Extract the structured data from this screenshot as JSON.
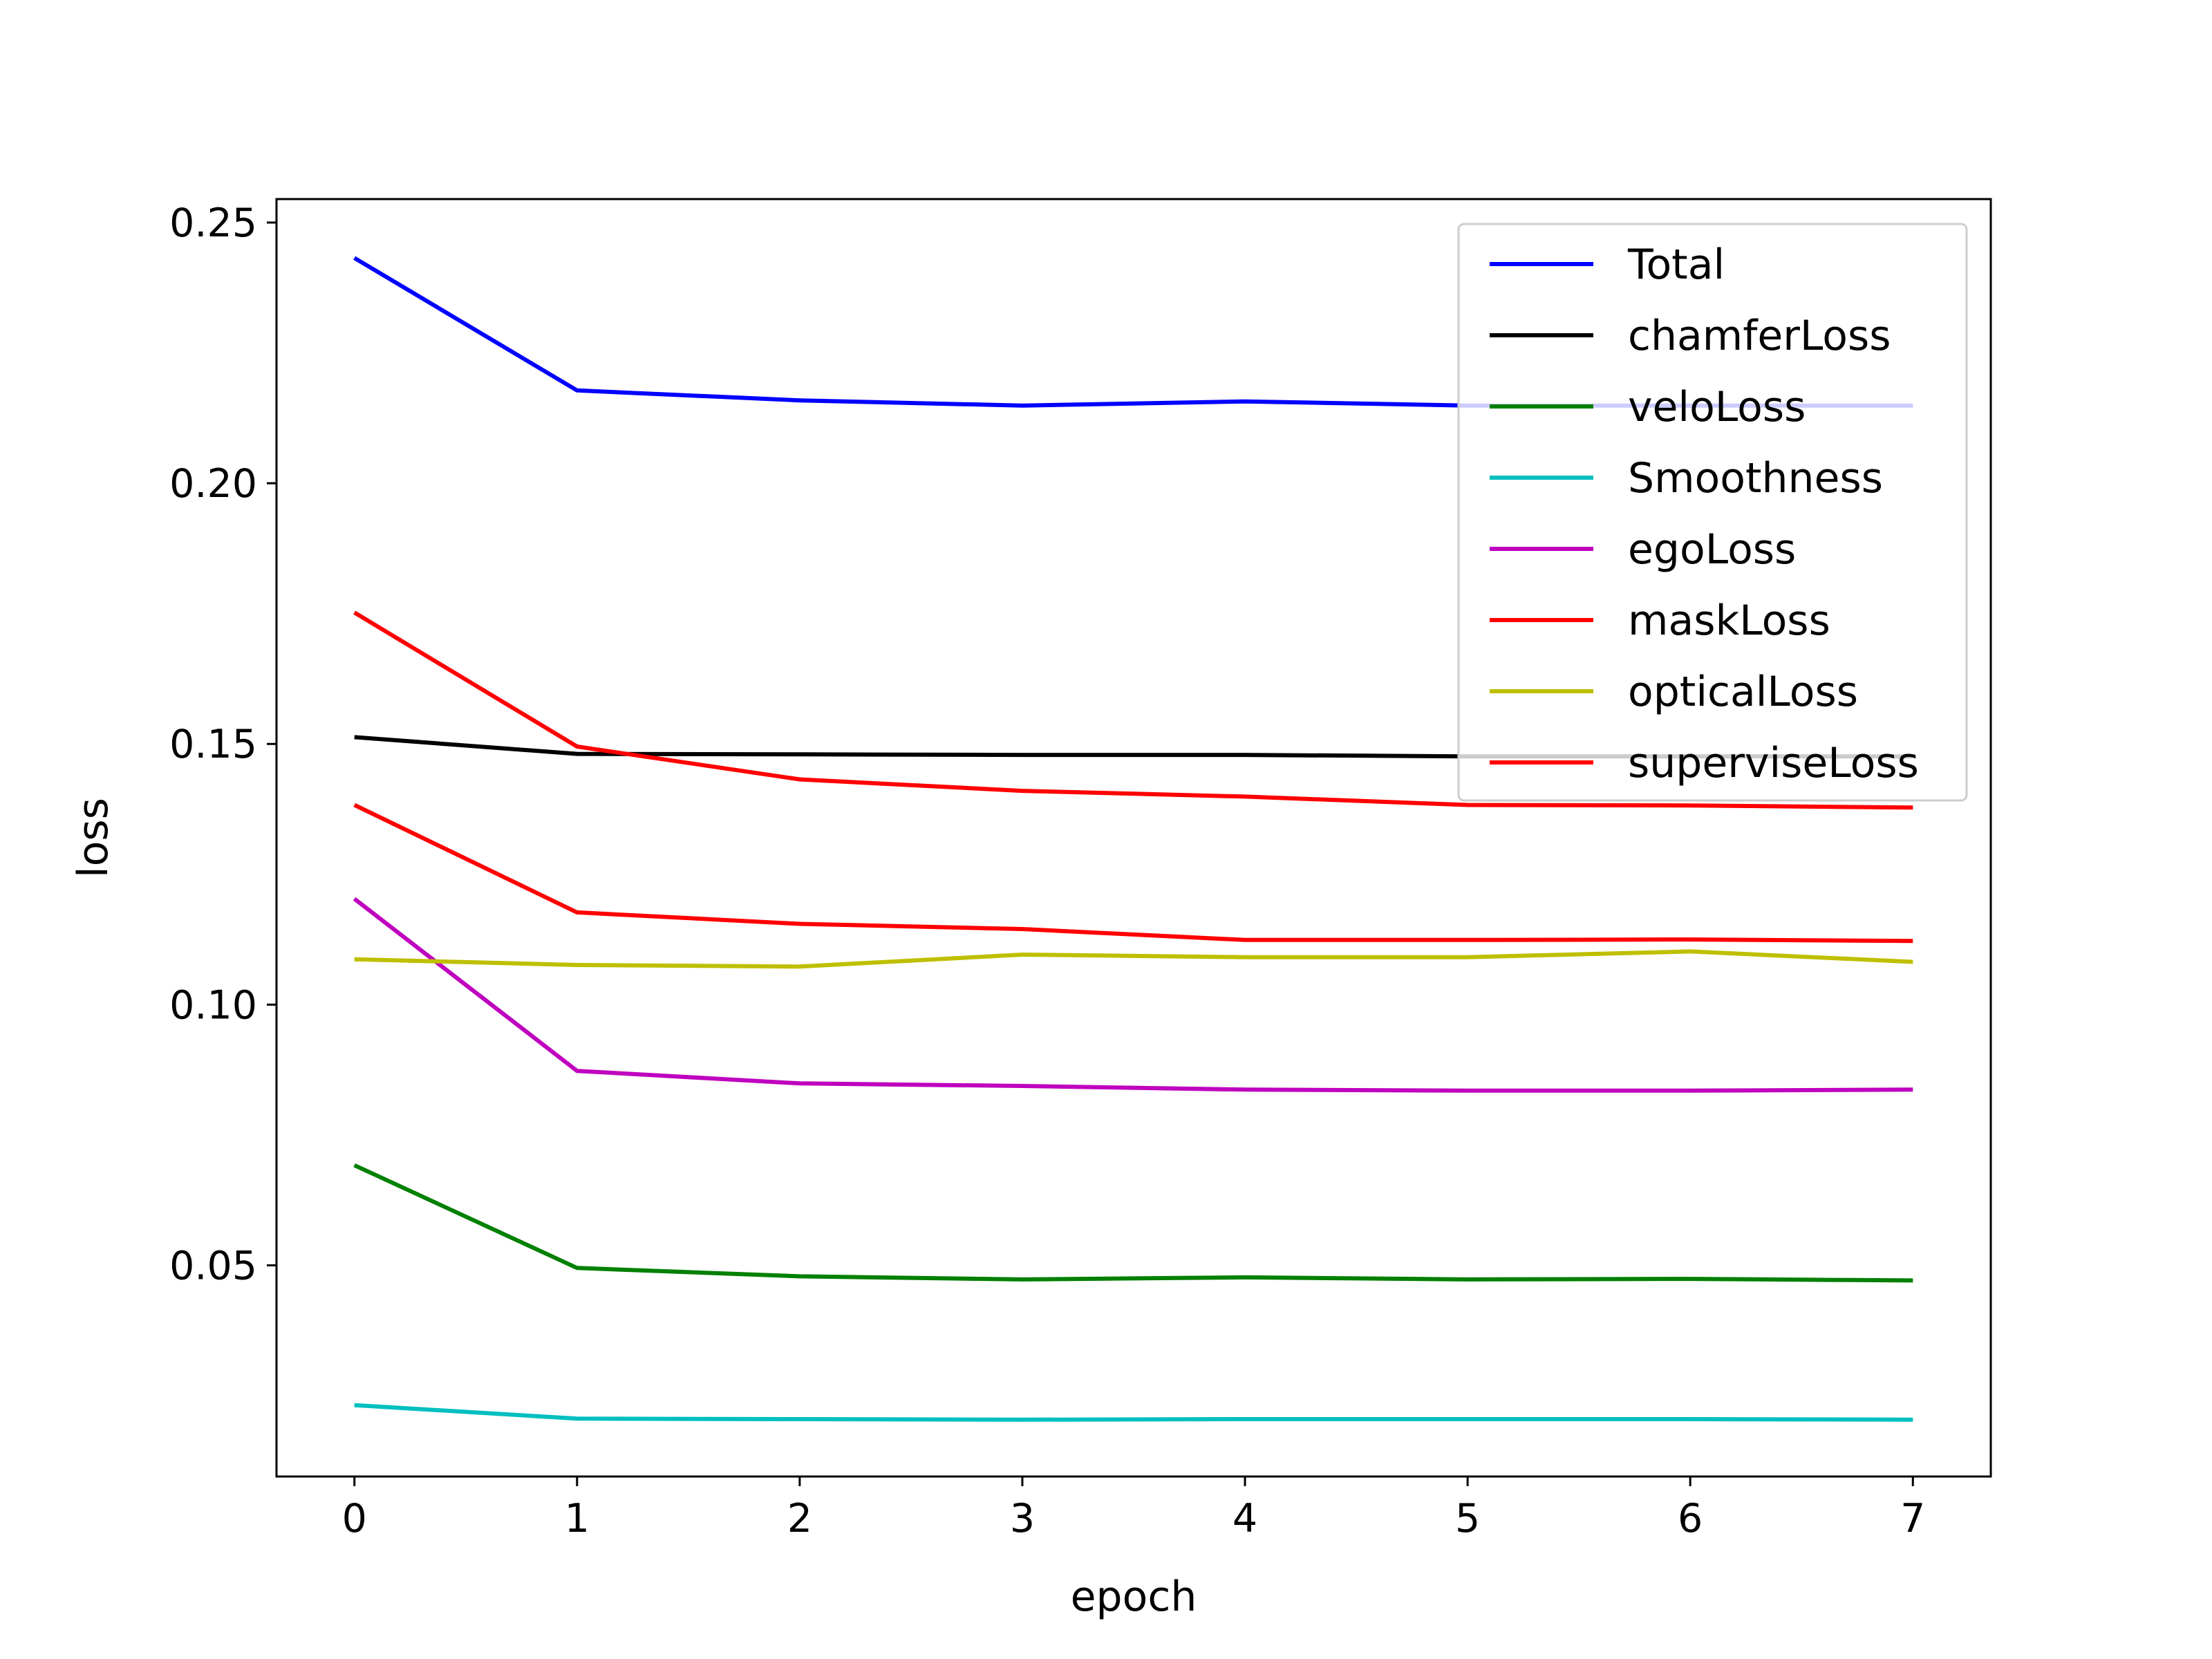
{
  "chart_data": {
    "type": "line",
    "xlabel": "epoch",
    "ylabel": "loss",
    "x": [
      0,
      1,
      2,
      3,
      4,
      5,
      6,
      7
    ],
    "xlim": [
      -0.35,
      7.35
    ],
    "ylim": [
      0.0095,
      0.2545
    ],
    "xticks": [
      0,
      1,
      2,
      3,
      4,
      5,
      6,
      7
    ],
    "xtick_labels": [
      "0",
      "1",
      "2",
      "3",
      "4",
      "5",
      "6",
      "7"
    ],
    "yticks": [
      0.05,
      0.1,
      0.15,
      0.2,
      0.25
    ],
    "ytick_labels": [
      "0.05",
      "0.10",
      "0.15",
      "0.20",
      "0.25"
    ],
    "grid": false,
    "legend_position": "top-right",
    "series": [
      {
        "name": "Total",
        "color": "#0000ff",
        "values": [
          0.2432,
          0.2178,
          0.2159,
          0.2149,
          0.2157,
          0.2149,
          0.2149,
          0.2149
        ]
      },
      {
        "name": "chamferLoss",
        "color": "#000000",
        "values": [
          0.1513,
          0.1481,
          0.148,
          0.1479,
          0.1479,
          0.1476,
          0.1476,
          0.1476
        ]
      },
      {
        "name": "veloLoss",
        "color": "#008000",
        "values": [
          0.0692,
          0.0495,
          0.0479,
          0.0473,
          0.0477,
          0.0473,
          0.0474,
          0.0471
        ]
      },
      {
        "name": "Smoothness",
        "color": "#00bfbf",
        "values": [
          0.0232,
          0.0206,
          0.0205,
          0.0204,
          0.0205,
          0.0205,
          0.0205,
          0.0204
        ]
      },
      {
        "name": "egoLoss",
        "color": "#bf00bf",
        "values": [
          0.1203,
          0.0873,
          0.0849,
          0.0844,
          0.0837,
          0.0835,
          0.0835,
          0.0837
        ]
      },
      {
        "name": "maskLoss",
        "color": "#ff0000",
        "values": [
          0.1383,
          0.1177,
          0.1155,
          0.1145,
          0.1124,
          0.1124,
          0.1125,
          0.1122
        ]
      },
      {
        "name": "opticalLoss",
        "color": "#bfbf00",
        "values": [
          0.1087,
          0.1076,
          0.1073,
          0.1096,
          0.1091,
          0.1091,
          0.1102,
          0.1082
        ]
      },
      {
        "name": "superviseLoss",
        "color": "#ff0000",
        "values": [
          0.1752,
          0.1495,
          0.1432,
          0.141,
          0.1399,
          0.1383,
          0.1382,
          0.1378
        ]
      }
    ]
  }
}
